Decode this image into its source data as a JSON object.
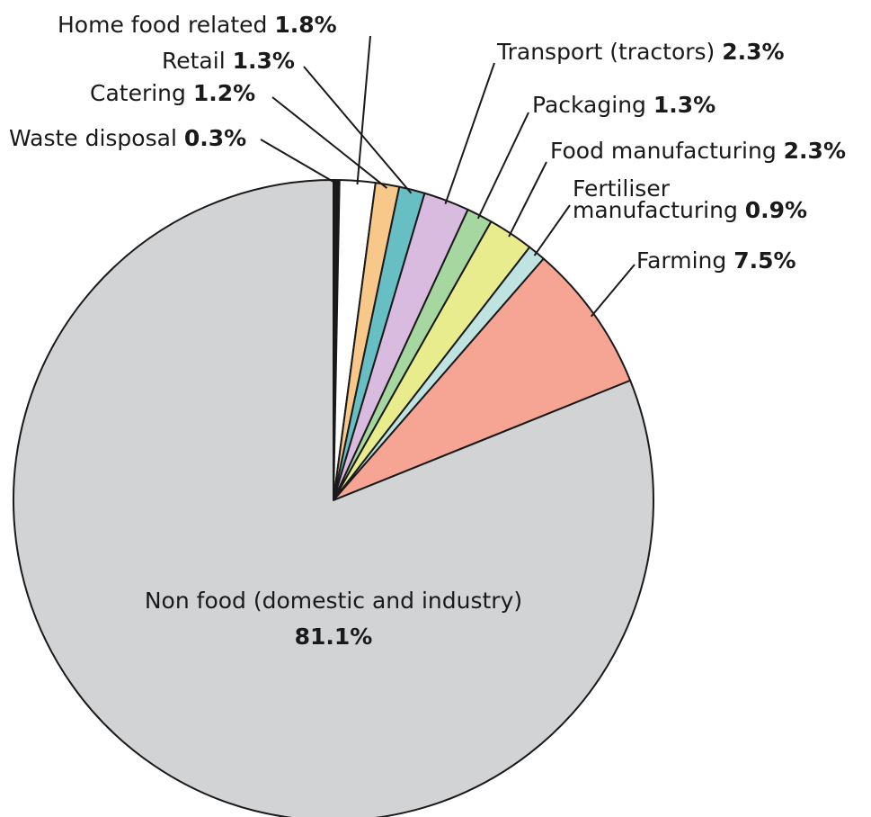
{
  "chart_data": {
    "type": "pie",
    "title": "",
    "start_angle_deg": 90,
    "direction": "clockwise",
    "slices": [
      {
        "label": "Waste disposal",
        "value": 0.3,
        "value_label": "0.3%",
        "color": "#1a1a1a"
      },
      {
        "label": "Home food related",
        "value": 1.8,
        "value_label": "1.8%",
        "color": "#ffffff"
      },
      {
        "label": "Catering",
        "value": 1.2,
        "value_label": "1.2%",
        "color": "#f7c88a"
      },
      {
        "label": "Retail",
        "value": 1.3,
        "value_label": "1.3%",
        "color": "#67bfc3"
      },
      {
        "label": "Transport (tractors)",
        "value": 2.3,
        "value_label": "2.3%",
        "color": "#d9bbe0"
      },
      {
        "label": "Packaging",
        "value": 1.3,
        "value_label": "1.3%",
        "color": "#a6d7a0"
      },
      {
        "label": "Food manufacturing",
        "value": 2.3,
        "value_label": "2.3%",
        "color": "#e9ec8c"
      },
      {
        "label": "Fertiliser\nmanufacturing",
        "value": 0.9,
        "value_label": "0.9%",
        "color": "#bfe3e1"
      },
      {
        "label": "Farming",
        "value": 7.5,
        "value_label": "7.5%",
        "color": "#f6a594"
      },
      {
        "label": "Non food (domestic and industry)",
        "value": 81.1,
        "value_label": "81.1%",
        "color": "#d2d3d5"
      }
    ]
  }
}
